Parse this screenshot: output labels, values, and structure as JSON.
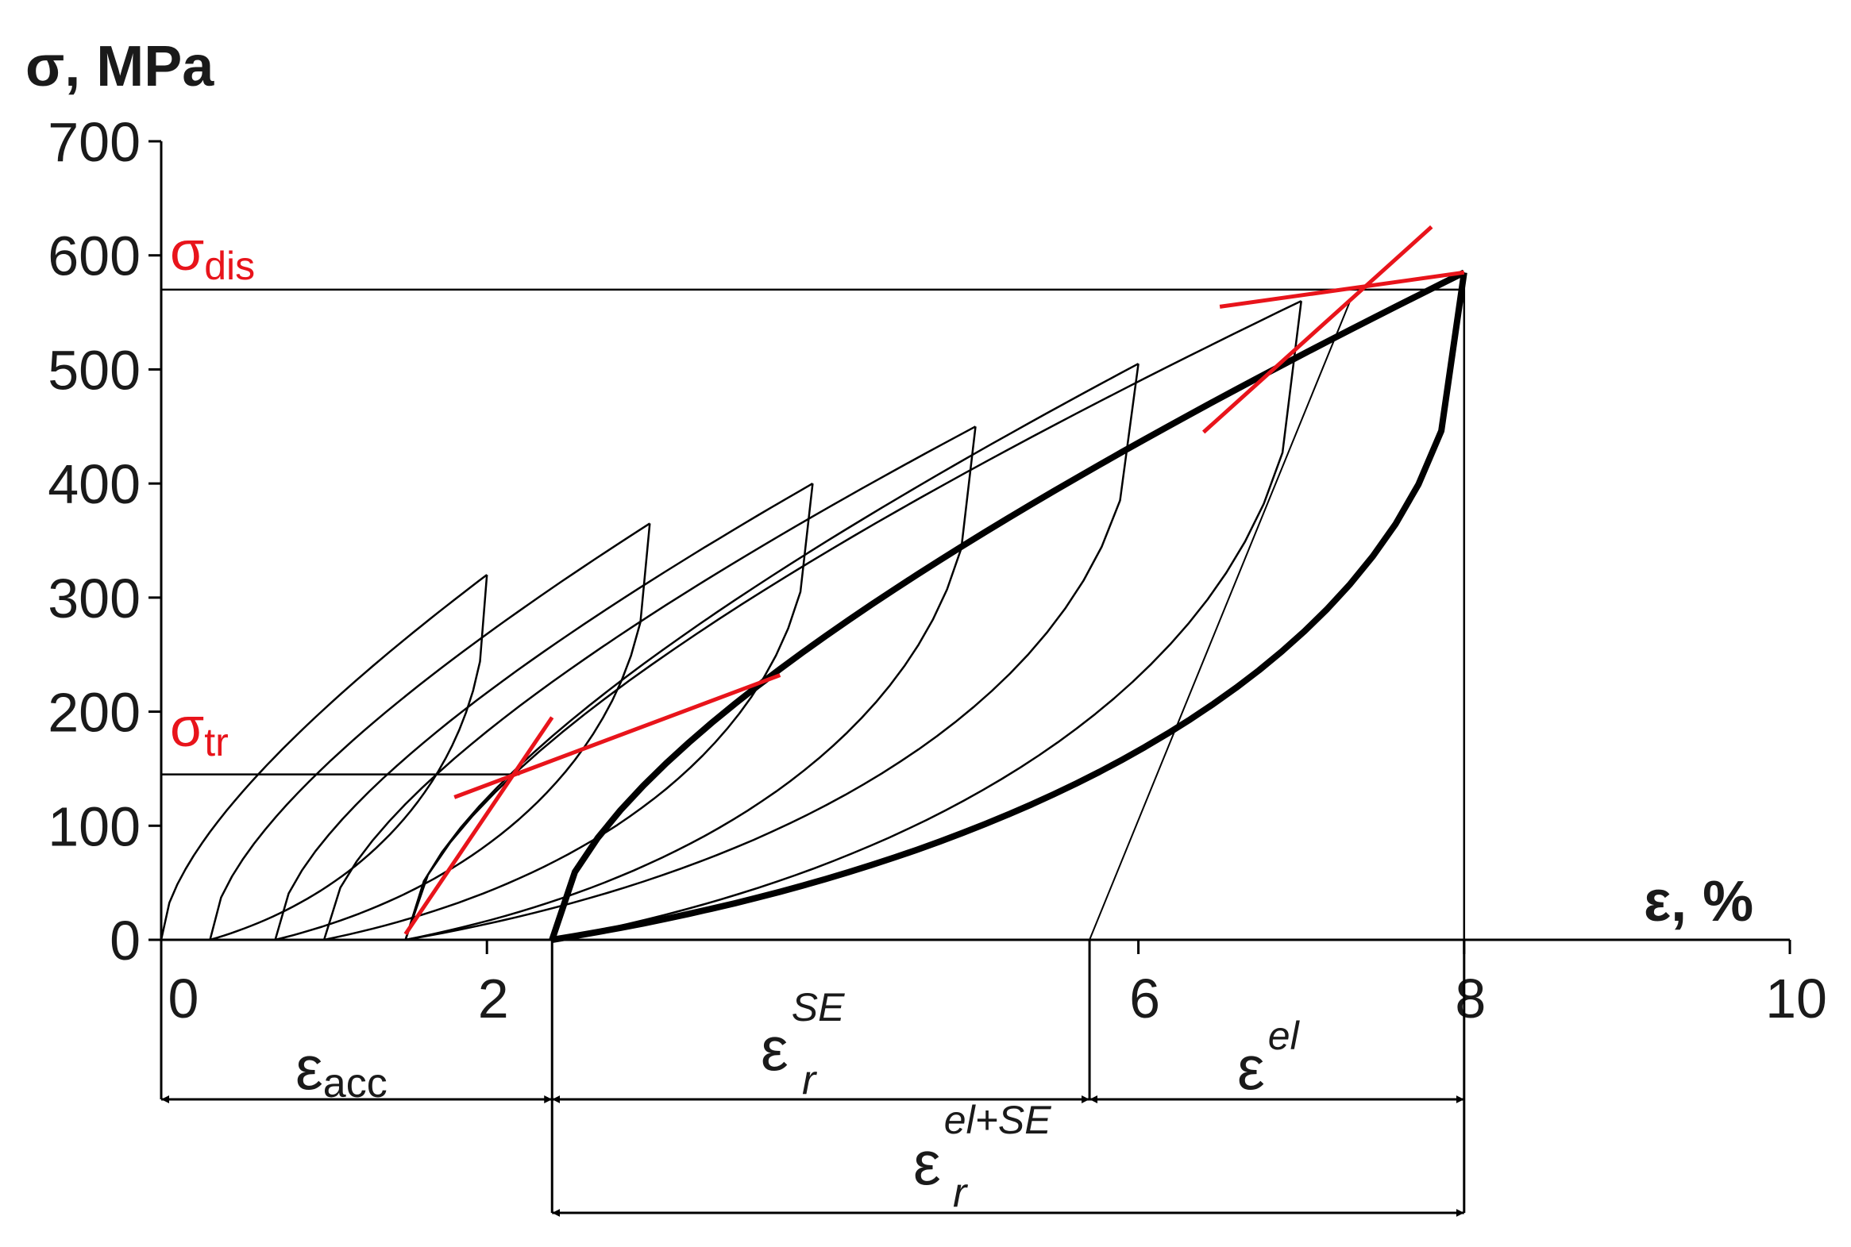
{
  "chart_data": {
    "type": "line",
    "title": "",
    "xlabel": "ε, %",
    "ylabel": "σ, MPa",
    "xlim": [
      0,
      10
    ],
    "ylim": [
      0,
      700
    ],
    "x_ticks": [
      "0",
      "2",
      "6",
      "8",
      "10"
    ],
    "y_ticks": [
      "0",
      "100",
      "200",
      "300",
      "400",
      "500",
      "600",
      "700"
    ],
    "grid": false,
    "legend": "none",
    "colors": {
      "curve": "#000000",
      "tangent": "#e8141b",
      "marker": "#000000"
    },
    "cycles": [
      {
        "peak_strain": 2.0,
        "peak_stress": 320,
        "residual_strain": 0.0
      },
      {
        "peak_strain": 3.0,
        "peak_stress": 365,
        "residual_strain": 0.3
      },
      {
        "peak_strain": 4.0,
        "peak_stress": 400,
        "residual_strain": 0.7
      },
      {
        "peak_strain": 5.0,
        "peak_stress": 450,
        "residual_strain": 1.0
      },
      {
        "peak_strain": 6.0,
        "peak_stress": 505,
        "residual_strain": 1.5
      },
      {
        "peak_strain": 7.0,
        "peak_stress": 560,
        "residual_strain": 1.5
      },
      {
        "peak_strain": 8.0,
        "peak_stress": 585,
        "residual_strain": 2.4
      }
    ],
    "sigma_tr": {
      "label": "σ",
      "subscript": "tr",
      "value": 145
    },
    "sigma_dis": {
      "label": "σ",
      "subscript": "dis",
      "value": 570
    },
    "strain_components": [
      {
        "name": "ε",
        "subscript": "acc",
        "from": 0,
        "to": 2.4
      },
      {
        "name": "ε",
        "subscript": "r",
        "superscript": "SE",
        "from": 2.4,
        "to": 5.7
      },
      {
        "name": "ε",
        "superscript": "el",
        "from": 5.7,
        "to": 8.0
      },
      {
        "name": "ε",
        "subscript": "r",
        "superscript": "el+SE",
        "from": 2.4,
        "to": 8.0
      }
    ]
  }
}
